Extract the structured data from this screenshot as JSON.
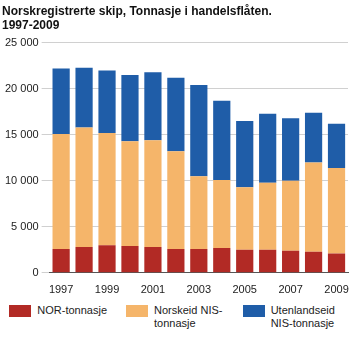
{
  "chart_data": {
    "type": "bar",
    "title": [
      "Norskregistrerte skip, Tonnasje i handelsflåten.",
      "1997-2009"
    ],
    "categories": [
      "1997",
      null,
      "1999",
      null,
      "2001",
      null,
      "2003",
      null,
      "2005",
      null,
      "2007",
      null,
      "2009"
    ],
    "series": [
      {
        "name": "NOR-tonnasje",
        "color": "#b22a25",
        "values": [
          2600,
          2800,
          3000,
          2900,
          2800,
          2600,
          2600,
          2700,
          2500,
          2500,
          2400,
          2300,
          2100
        ]
      },
      {
        "name": "Norskeid NIS-tonnasje",
        "color": "#f5b56a",
        "values": [
          12500,
          13000,
          12200,
          11400,
          11600,
          10600,
          7900,
          7400,
          6800,
          7300,
          7600,
          9700,
          9300
        ]
      },
      {
        "name": "Utenlandseid NIS-tonnasje",
        "color": "#1f5da8",
        "values": [
          7100,
          6500,
          6800,
          7200,
          7400,
          8000,
          9900,
          8600,
          7200,
          7500,
          6800,
          5400,
          4800
        ]
      }
    ],
    "stacked": true,
    "ylim": [
      0,
      25000
    ],
    "yticks": [
      {
        "value": 0,
        "label": "0"
      },
      {
        "value": 5000,
        "label": "5 000"
      },
      {
        "value": 10000,
        "label": "10 000"
      },
      {
        "value": 15000,
        "label": "15 000"
      },
      {
        "value": 20000,
        "label": "20 000"
      },
      {
        "value": 25000,
        "label": "25 000"
      }
    ],
    "grid": true,
    "legend": "bottom"
  }
}
